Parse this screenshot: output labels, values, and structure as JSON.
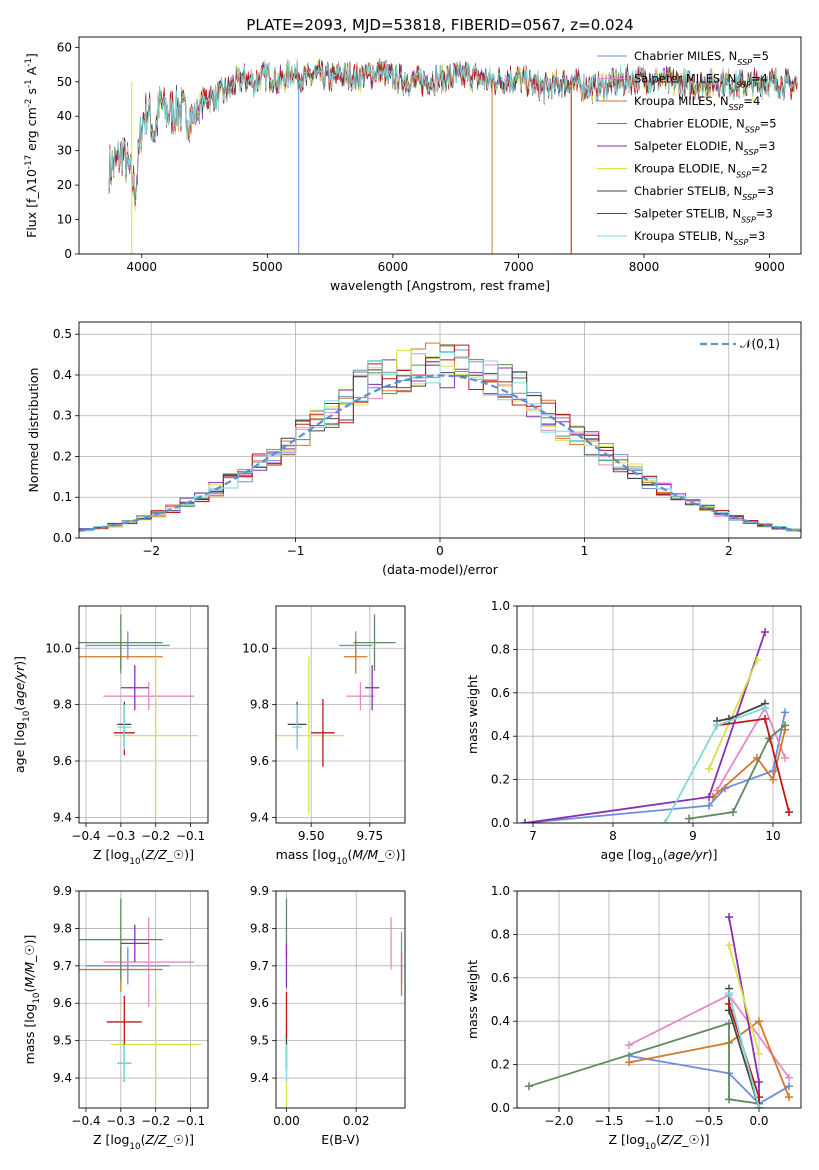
{
  "figure": {
    "title": "PLATE=2093, MJD=53818, FIBERID=0567, z=0.024"
  },
  "legend_models": [
    {
      "label": "Chabrier MILES, N$_{SSP}$=5",
      "color": "#6b8fd9"
    },
    {
      "label": "Salpeter MILES, N$_{SSP}$=4",
      "color": "#e58ac6"
    },
    {
      "label": "Kroupa MILES, N$_{SSP}$=4",
      "color": "#d4782a"
    },
    {
      "label": "Chabrier ELODIE, N$_{SSP}$=5",
      "color": "#5f8a5f"
    },
    {
      "label": "Salpeter ELODIE, N$_{SSP}$=3",
      "color": "#8a2fb5"
    },
    {
      "label": "Kroupa ELODIE, N$_{SSP}$=2",
      "color": "#d9e04a"
    },
    {
      "label": "Chabrier STELIB, N$_{SSP}$=3",
      "color": "#444444"
    },
    {
      "label": "Salpeter STELIB, N$_{SSP}$=3",
      "color": "#c01818"
    },
    {
      "label": "Kroupa STELIB, N$_{SSP}$=3",
      "color": "#7fdada"
    }
  ],
  "chart_data": [
    {
      "id": "spectrum",
      "type": "line",
      "title": "PLATE=2093, MJD=53818, FIBERID=0567, z=0.024",
      "xlabel": "wavelength [Angstrom, rest frame]",
      "ylabel": "Flux [f$_\\lambda$10$^{-17}$ erg cm$^{-2}$ s$^{-1}$ A$^{-1}$]",
      "xlim": [
        3500,
        9250
      ],
      "ylim": [
        0,
        63
      ],
      "xticks": [
        4000,
        5000,
        6000,
        7000,
        8000,
        9000
      ],
      "yticks": [
        0,
        10,
        20,
        30,
        40,
        50,
        60
      ],
      "legend": "top-right",
      "x": [
        3750,
        3800,
        3850,
        3900,
        3950,
        4000,
        4050,
        4100,
        4150,
        4200,
        4300,
        4400,
        4500,
        4600,
        4700,
        4800,
        4900,
        5000,
        5100,
        5200,
        5300,
        5400,
        5500,
        5600,
        5700,
        5800,
        5900,
        6000,
        6200,
        6400,
        6600,
        6800,
        7000,
        7200,
        7400,
        7600,
        7800,
        8000,
        8200,
        8400,
        8600,
        8800,
        9000,
        9200
      ],
      "y": [
        25,
        27,
        30,
        24,
        18,
        38,
        42,
        35,
        44,
        41,
        42,
        39,
        45,
        46,
        48,
        51,
        50,
        52,
        50,
        53,
        51,
        52,
        51,
        52,
        51,
        52,
        53,
        51,
        50,
        51,
        52,
        50,
        51,
        48,
        50,
        48,
        50,
        51,
        50,
        49,
        50,
        49,
        50,
        49
      ]
    },
    {
      "id": "residuals",
      "type": "line",
      "xlabel": "(data-model)/error",
      "ylabel": "Normed distribution",
      "xlim": [
        -2.5,
        2.5
      ],
      "ylim": [
        0,
        0.53
      ],
      "xticks": [
        -2,
        -1,
        0,
        1,
        2
      ],
      "yticks": [
        0.0,
        0.1,
        0.2,
        0.3,
        0.4,
        0.5
      ],
      "grid": true,
      "legend": "top-right",
      "legend_label": "$\\mathcal{N}(0,1)$",
      "series": [
        {
          "values": []
        }
      ]
    },
    {
      "id": "age-vs-Z",
      "type": "scatter",
      "xlabel": "Z [log$_{10}$($Z/Z_\\odot$)]",
      "ylabel": "age  [log$_{10}$($age/yr$)]",
      "xlim": [
        -0.42,
        -0.05
      ],
      "ylim": [
        9.38,
        10.15
      ],
      "xticks": [
        -0.4,
        -0.3,
        -0.2,
        -0.1
      ],
      "yticks": [
        9.4,
        9.6,
        9.8,
        10.0
      ],
      "grid": true,
      "points": [
        {
          "x": -0.28,
          "y": 10.01,
          "xerr": 0.12,
          "yerr": 0.05
        },
        {
          "x": -0.22,
          "y": 9.83,
          "xerr": 0.13,
          "yerr": 0.05
        },
        {
          "x": -0.3,
          "y": 9.97,
          "xerr": 0.12,
          "yerr": 0.06
        },
        {
          "x": -0.3,
          "y": 10.02,
          "xerr": 0.12,
          "yerr": 0.1
        },
        {
          "x": -0.26,
          "y": 9.86,
          "xerr": 0.04,
          "yerr": 0.08
        },
        {
          "x": -0.2,
          "y": 9.69,
          "xerr": 0.12,
          "yerr": 0.28
        },
        {
          "x": -0.29,
          "y": 9.73,
          "xerr": 0.02,
          "yerr": 0.08
        },
        {
          "x": -0.29,
          "y": 9.7,
          "xerr": 0.03,
          "yerr": 0.08
        },
        {
          "x": -0.29,
          "y": 9.72,
          "xerr": 0.02,
          "yerr": 0.08
        }
      ]
    },
    {
      "id": "age-vs-mass",
      "type": "scatter",
      "xlabel": "mass [log$_{10}$($M/M_\\odot$)]",
      "xlim": [
        9.35,
        9.9
      ],
      "ylim": [
        9.38,
        10.15
      ],
      "xticks": [
        9.5,
        9.75
      ],
      "yticks": [
        9.4,
        9.6,
        9.8,
        10.0
      ],
      "grid": true,
      "points": [
        {
          "x": 9.69,
          "y": 10.01,
          "xerr": 0.07,
          "yerr": 0.05
        },
        {
          "x": 9.71,
          "y": 9.83,
          "xerr": 0.06,
          "yerr": 0.05
        },
        {
          "x": 9.69,
          "y": 9.97,
          "xerr": 0.05,
          "yerr": 0.06
        },
        {
          "x": 9.77,
          "y": 10.02,
          "xerr": 0.09,
          "yerr": 0.1
        },
        {
          "x": 9.76,
          "y": 9.86,
          "xerr": 0.03,
          "yerr": 0.08
        },
        {
          "x": 9.49,
          "y": 9.69,
          "xerr": 0.15,
          "yerr": 0.28
        },
        {
          "x": 9.44,
          "y": 9.73,
          "xerr": 0.04,
          "yerr": 0.08
        },
        {
          "x": 9.55,
          "y": 9.7,
          "xerr": 0.05,
          "yerr": 0.12
        },
        {
          "x": 9.44,
          "y": 9.72,
          "xerr": 0.02,
          "yerr": 0.08
        }
      ]
    },
    {
      "id": "mass-weight-vs-age",
      "type": "line",
      "xlabel": "age  [log$_{10}$($age/yr$)]",
      "ylabel": "mass weight",
      "xlim": [
        6.8,
        10.35
      ],
      "ylim": [
        0,
        1.0
      ],
      "xticks": [
        7,
        8,
        9,
        10
      ],
      "yticks": [
        0.0,
        0.2,
        0.4,
        0.6,
        0.8,
        1.0
      ],
      "grid": true,
      "series": [
        {
          "color": "#6b8fd9",
          "x": [
            6.9,
            9.2,
            9.4,
            10.0,
            10.15
          ],
          "y": [
            0.0,
            0.08,
            0.16,
            0.24,
            0.51
          ]
        },
        {
          "color": "#e58ac6",
          "x": [
            9.3,
            9.9,
            10.15
          ],
          "y": [
            0.15,
            0.53,
            0.3
          ]
        },
        {
          "color": "#d4782a",
          "x": [
            9.25,
            9.8,
            10.0,
            10.15
          ],
          "y": [
            0.12,
            0.3,
            0.2,
            0.43
          ]
        },
        {
          "color": "#5f8a5f",
          "x": [
            8.95,
            9.5,
            9.95,
            10.15
          ],
          "y": [
            0.02,
            0.05,
            0.39,
            0.45
          ]
        },
        {
          "color": "#8a2fb5",
          "x": [
            6.9,
            9.2,
            9.9
          ],
          "y": [
            0.0,
            0.12,
            0.88
          ]
        },
        {
          "color": "#d9e04a",
          "x": [
            9.2,
            9.8
          ],
          "y": [
            0.25,
            0.75
          ]
        },
        {
          "color": "#444444",
          "x": [
            9.3,
            9.45,
            9.9
          ],
          "y": [
            0.47,
            0.48,
            0.55
          ]
        },
        {
          "color": "#c01818",
          "x": [
            9.3,
            9.9,
            10.2
          ],
          "y": [
            0.45,
            0.48,
            0.05
          ]
        },
        {
          "color": "#7fdada",
          "x": [
            8.65,
            9.3,
            9.9
          ],
          "y": [
            0.0,
            0.45,
            0.53
          ]
        }
      ]
    },
    {
      "id": "mass-vs-Z",
      "type": "scatter",
      "xlabel": "Z [log$_{10}$($Z/Z_\\odot$)]",
      "ylabel": "mass [log$_{10}$($M/M_\\odot$)]",
      "xlim": [
        -0.42,
        -0.05
      ],
      "ylim": [
        9.32,
        9.9
      ],
      "xticks": [
        -0.4,
        -0.3,
        -0.2,
        -0.1
      ],
      "yticks": [
        9.4,
        9.5,
        9.6,
        9.7,
        9.8,
        9.9
      ],
      "grid": true,
      "points": [
        {
          "x": -0.28,
          "y": 9.7,
          "xerr": 0.12,
          "yerr": 0.05
        },
        {
          "x": -0.22,
          "y": 9.71,
          "xerr": 0.13,
          "yerr": 0.12
        },
        {
          "x": -0.3,
          "y": 9.69,
          "xerr": 0.12,
          "yerr": 0.06
        },
        {
          "x": -0.3,
          "y": 9.77,
          "xerr": 0.12,
          "yerr": 0.11
        },
        {
          "x": -0.26,
          "y": 9.76,
          "xerr": 0.04,
          "yerr": 0.05
        },
        {
          "x": -0.2,
          "y": 9.49,
          "xerr": 0.13,
          "yerr": 0.15
        },
        {
          "x": -0.29,
          "y": 9.44,
          "xerr": 0.02,
          "yerr": 0.05
        },
        {
          "x": -0.29,
          "y": 9.55,
          "xerr": 0.05,
          "yerr": 0.07
        },
        {
          "x": -0.29,
          "y": 9.44,
          "xerr": 0.02,
          "yerr": 0.05
        }
      ]
    },
    {
      "id": "mass-vs-ebv",
      "type": "scatter",
      "xlabel": "E(B-V)",
      "xlim": [
        -0.003,
        0.034
      ],
      "ylim": [
        9.32,
        9.9
      ],
      "xticks": [
        0.0,
        0.02
      ],
      "yticks": [
        9.4,
        9.5,
        9.6,
        9.7,
        9.8,
        9.9
      ],
      "grid": true,
      "points": [
        {
          "x": 0.033,
          "y": 9.72,
          "yerr": 0.07
        },
        {
          "x": 0.03,
          "y": 9.76,
          "yerr": 0.07
        },
        {
          "x": 0.033,
          "y": 9.68,
          "yerr": 0.06
        },
        {
          "x": 0.0,
          "y": 9.8,
          "yerr": 0.08
        },
        {
          "x": 0.0,
          "y": 9.7,
          "yerr": 0.06
        },
        {
          "x": 0.0,
          "y": 9.44,
          "yerr": 0.12
        },
        {
          "x": 0.0,
          "y": 9.47,
          "yerr": 0.05
        },
        {
          "x": 0.0,
          "y": 9.57,
          "yerr": 0.06
        },
        {
          "x": 0.0,
          "y": 9.44,
          "yerr": 0.05
        }
      ]
    },
    {
      "id": "mass-weight-vs-Z",
      "type": "line",
      "xlabel": "Z [log$_{10}$($Z/Z_\\odot$)]",
      "ylabel": "mass weight",
      "xlim": [
        -2.42,
        0.42
      ],
      "ylim": [
        0,
        1.0
      ],
      "xticks": [
        -2.0,
        -1.5,
        -1.0,
        -0.5,
        0.0
      ],
      "yticks": [
        0.0,
        0.2,
        0.4,
        0.6,
        0.8,
        1.0
      ],
      "grid": true,
      "series": [
        {
          "color": "#6b8fd9",
          "x": [
            -1.3,
            -0.3,
            0.0,
            0.3
          ],
          "y": [
            0.24,
            0.16,
            0.02,
            0.1
          ]
        },
        {
          "color": "#e58ac6",
          "x": [
            -1.3,
            -0.3,
            0.3
          ],
          "y": [
            0.29,
            0.52,
            0.14
          ]
        },
        {
          "color": "#d4782a",
          "x": [
            -1.3,
            -0.3,
            0.0,
            0.3
          ],
          "y": [
            0.21,
            0.3,
            0.4,
            0.05
          ]
        },
        {
          "color": "#5f8a5f",
          "x": [
            -2.3,
            -0.3,
            -0.3,
            0.0
          ],
          "y": [
            0.1,
            0.39,
            0.04,
            0.02
          ]
        },
        {
          "color": "#8a2fb5",
          "x": [
            -0.3,
            0.0,
            0.0
          ],
          "y": [
            0.88,
            0.12,
            0.0
          ]
        },
        {
          "color": "#d9e04a",
          "x": [
            -0.3,
            0.0
          ],
          "y": [
            0.75,
            0.25
          ]
        },
        {
          "color": "#444444",
          "x": [
            -0.3,
            -0.3,
            0.0
          ],
          "y": [
            0.55,
            0.45,
            0.0
          ]
        },
        {
          "color": "#c01818",
          "x": [
            -0.3,
            0.0,
            0.0
          ],
          "y": [
            0.48,
            0.05,
            0.0
          ]
        },
        {
          "color": "#7fdada",
          "x": [
            -0.3,
            0.0
          ],
          "y": [
            0.53,
            0.0
          ]
        }
      ]
    }
  ]
}
